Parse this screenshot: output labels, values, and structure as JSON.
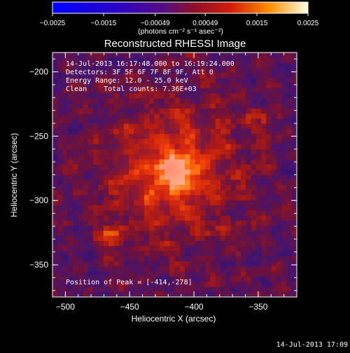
{
  "colorbar": {
    "ticks": [
      "-0.0025",
      "-0.0015",
      "-0.00049",
      "0.00049",
      "0.0015",
      "0.0025"
    ],
    "units_label": "(photons cm⁻² s⁻¹ asec⁻²)"
  },
  "chart_data": {
    "type": "heatmap",
    "title": "Reconstructed RHESSI Image",
    "xlabel": "Heliocentric X (arcsec)",
    "ylabel": "Heliocentric Y (arcsec)",
    "xlim": [
      -510,
      -320
    ],
    "ylim": [
      -375,
      -185
    ],
    "x_ticks": [
      -500,
      -450,
      -400,
      -350
    ],
    "y_ticks": [
      -200,
      -250,
      -300,
      -350
    ],
    "x_tick_labels": [
      "-500",
      "-450",
      "-400",
      "-350"
    ],
    "y_tick_labels": [
      "-200",
      "-250",
      "-300",
      "-350"
    ],
    "colorbar_range": [
      -0.0025,
      0.0025
    ],
    "peak": {
      "x": -414,
      "y": -278
    },
    "annotations": {
      "time_range": "14-Jul-2013 16:17:48.000 to 16:19:24.000",
      "detectors": "Detectors: 3F 5F 6F 7F 8F 9F, Att 0",
      "energy_range": "Energy Range: 12.0 - 25.0 keV",
      "method_counts": "Clean    Total counts: 7.36E+03",
      "peak_position": "Position of Peak = [-414,-278]"
    }
  },
  "footer": {
    "timestamp": "14-Jul-2013 17:09"
  }
}
